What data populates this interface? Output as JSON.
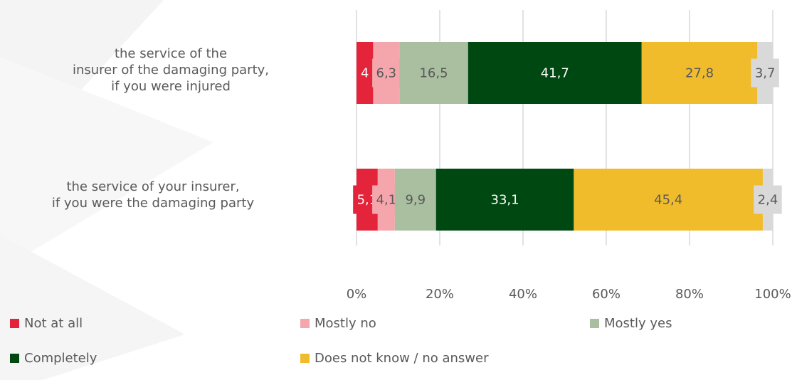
{
  "chart_data": {
    "type": "bar",
    "orientation": "horizontal",
    "stacked": true,
    "categories": [
      "the service of the\ninsurer of the damaging party,\nif you were injured",
      "the service of your insurer,\nif you were the damaging party"
    ],
    "series": [
      {
        "name": "Not at all",
        "color": "#e3243b",
        "values": [
          4,
          5.1
        ],
        "labels": [
          "4",
          "5,1"
        ]
      },
      {
        "name": "Mostly no",
        "color": "#f4a6ac",
        "values": [
          6.3,
          4.1
        ],
        "labels": [
          "6,3",
          "4,1"
        ]
      },
      {
        "name": "Mostly yes",
        "color": "#a9bfa0",
        "values": [
          16.5,
          9.9
        ],
        "labels": [
          "16,5",
          "9,9"
        ]
      },
      {
        "name": "Completely",
        "color": "#004812",
        "values": [
          41.7,
          33.1
        ],
        "labels": [
          "41,7",
          "33,1"
        ]
      },
      {
        "name": "Does not know / no answer",
        "color": "#f0bc2c",
        "values": [
          27.8,
          45.4
        ],
        "labels": [
          "27,8",
          "45,4"
        ]
      },
      {
        "name": "",
        "color": "#d9d9d9",
        "values": [
          3.7,
          2.4
        ],
        "labels": [
          "3,7",
          "2,4"
        ]
      }
    ],
    "xlim": [
      0,
      100
    ],
    "xticks": [
      "0%",
      "20%",
      "40%",
      "60%",
      "80%",
      "100%"
    ],
    "grid": true,
    "legend_position": "bottom"
  }
}
